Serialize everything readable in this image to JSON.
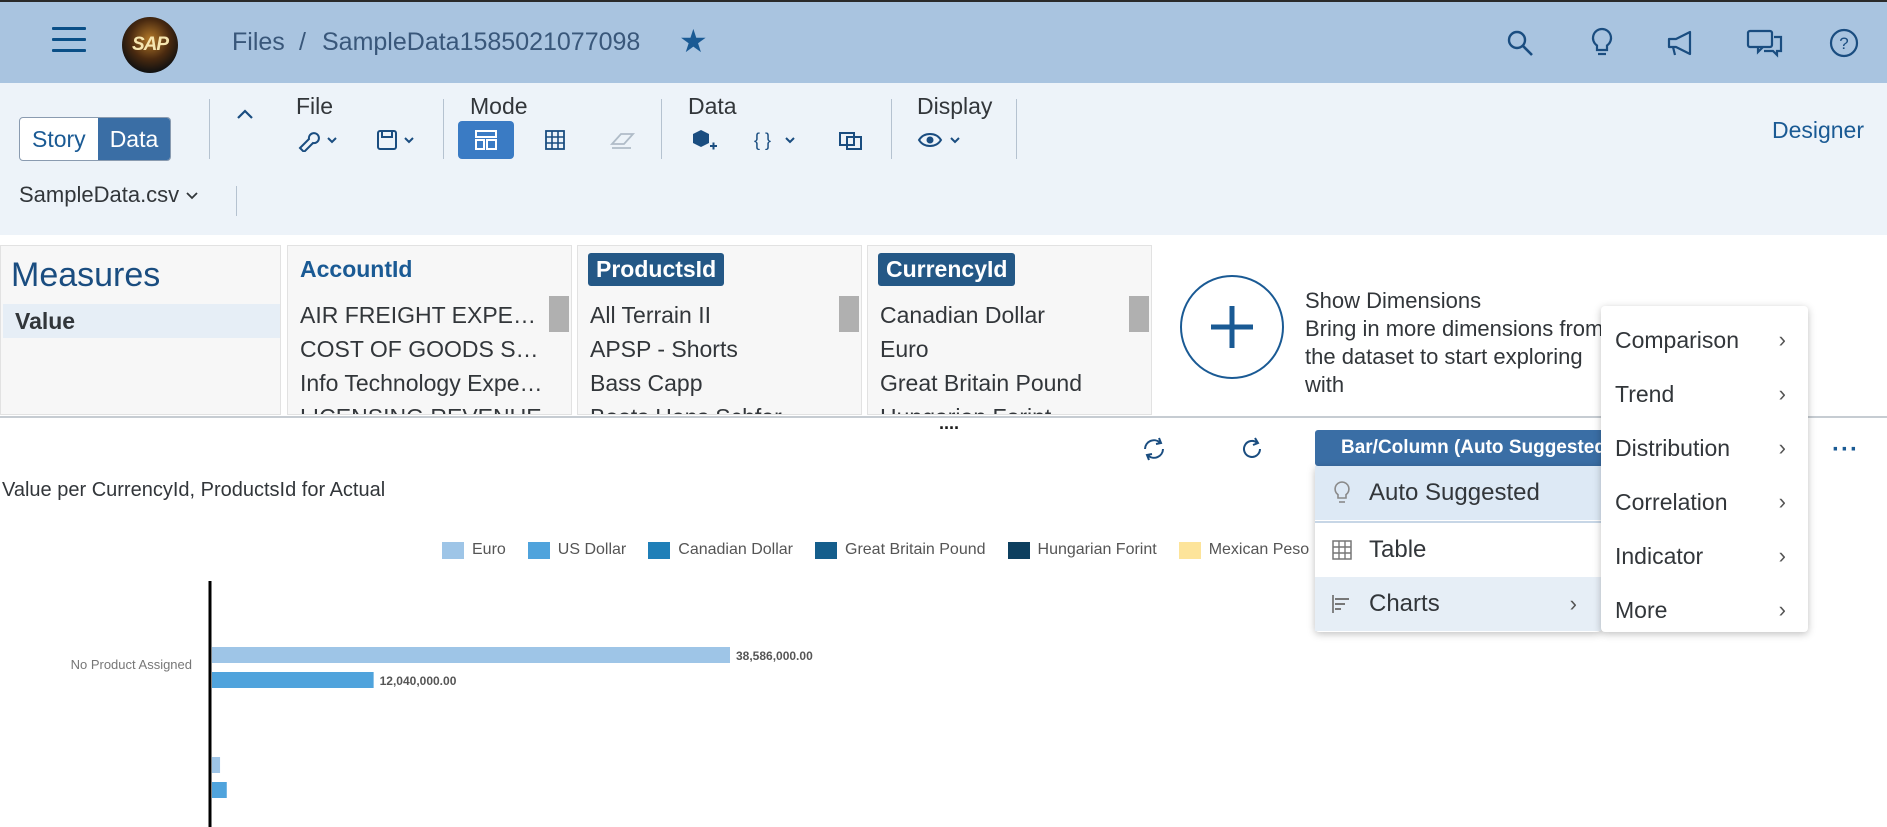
{
  "shell": {
    "logo_text": "SAP",
    "breadcrumb_root": "Files",
    "breadcrumb_sep": "/",
    "file_name": "SampleData1585021077098"
  },
  "toolbar": {
    "story_label": "Story",
    "data_label": "Data",
    "group_file": "File",
    "group_mode": "Mode",
    "group_data": "Data",
    "group_display": "Display",
    "designer_label": "Designer",
    "dataset_name": "SampleData.csv"
  },
  "panels": {
    "measures_title": "Measures",
    "measures_item": "Value",
    "dimensions": [
      {
        "title": "AccountId",
        "items": [
          "AIR FREIGHT EXPENSE",
          "COST OF GOODS SOLD",
          "Info Technology Expenses",
          "LICENSING REVENUE"
        ]
      },
      {
        "title": "ProductsId",
        "items": [
          "All Terrain II",
          "APSP - Shorts",
          "Bass Capp",
          "Boots Hans Schfer"
        ]
      },
      {
        "title": "CurrencyId",
        "items": [
          "Canadian Dollar",
          "Euro",
          "Great Britain Pound",
          "Hungarian Forint"
        ]
      }
    ],
    "show_dims_title": "Show Dimensions",
    "show_dims_desc": "Bring in more dimensions from the dataset to start exploring with"
  },
  "chart_toolbar": {
    "chart_type_label": "Bar/Column (Auto Suggested)"
  },
  "menu": {
    "auto_suggested": "Auto Suggested",
    "table": "Table",
    "charts": "Charts",
    "submenu": [
      "Comparison",
      "Trend",
      "Distribution",
      "Correlation",
      "Indicator",
      "More"
    ]
  },
  "colors": {
    "euro": "#9ec5e7",
    "us_dollar": "#4fa3dc",
    "canadian_dollar": "#1f7fb8",
    "great_britain_pound": "#155e8c",
    "hungarian_forint": "#0d3f5f",
    "mexican_peso": "#fde49a"
  },
  "chart_data": {
    "type": "bar",
    "title": "Value per CurrencyId, ProductsId for Actual",
    "orientation": "horizontal",
    "legend": [
      "Euro",
      "US Dollar",
      "Canadian Dollar",
      "Great Britain Pound",
      "Hungarian Forint",
      "Mexican Peso"
    ],
    "legend_placement": "top",
    "categories": [
      "No Product Assigned",
      ""
    ],
    "series": [
      {
        "name": "Euro",
        "values": [
          38586000,
          600000
        ]
      },
      {
        "name": "US Dollar",
        "values": [
          12040000,
          1100000
        ]
      }
    ],
    "data_labels": [
      "38,586,000.00",
      "12,040,000.00"
    ],
    "xlim": [
      0,
      38586000
    ]
  }
}
